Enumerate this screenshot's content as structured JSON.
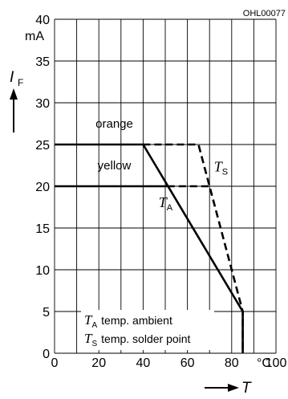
{
  "doc_code": "OHL00077",
  "chart_data": {
    "type": "line",
    "x_ticks": [
      0,
      20,
      40,
      60,
      80,
      100
    ],
    "x_unit": "°C",
    "xlim": [
      0,
      100
    ],
    "y_ticks": [
      0,
      5,
      10,
      15,
      20,
      25,
      30,
      35,
      40
    ],
    "y_unit": "mA",
    "ylim": [
      0,
      40
    ],
    "grid": true,
    "y_axis_label": {
      "main": "I",
      "sub": "F"
    },
    "x_axis_label": {
      "main": "T"
    },
    "series": [
      {
        "name": "T_A (orange)",
        "style": "solid",
        "points": [
          [
            0,
            25
          ],
          [
            40,
            25
          ],
          [
            85,
            5
          ],
          [
            85,
            0
          ]
        ]
      },
      {
        "name": "T_A (yellow)",
        "style": "solid",
        "points": [
          [
            0,
            20
          ],
          [
            51,
            20
          ]
        ]
      },
      {
        "name": "T_S (orange)",
        "style": "dashed",
        "points": [
          [
            40,
            25
          ],
          [
            65,
            25
          ],
          [
            85,
            5
          ],
          [
            85,
            0
          ]
        ]
      },
      {
        "name": "T_S (yellow)",
        "style": "dashed",
        "points": [
          [
            51,
            20
          ],
          [
            70,
            20
          ]
        ]
      }
    ],
    "annotations": [
      {
        "text": "orange",
        "x": 27,
        "y": 27
      },
      {
        "text": "yellow",
        "x": 27,
        "y": 22
      },
      {
        "main": "T",
        "sub": "A",
        "x": 47,
        "y": 17.5
      },
      {
        "main": "T",
        "sub": "S",
        "x": 72,
        "y": 21.8
      }
    ],
    "legend": [
      {
        "main": "T",
        "sub": "A",
        "text": "temp. ambient"
      },
      {
        "main": "T",
        "sub": "S",
        "text": "temp. solder point"
      }
    ]
  }
}
